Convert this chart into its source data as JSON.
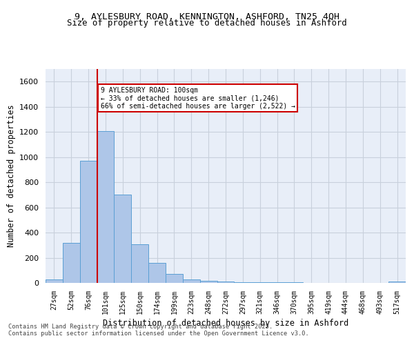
{
  "title_line1": "9, AYLESBURY ROAD, KENNINGTON, ASHFORD, TN25 4QH",
  "title_line2": "Size of property relative to detached houses in Ashford",
  "xlabel": "Distribution of detached houses by size in Ashford",
  "ylabel": "Number of detached properties",
  "categories": [
    "27sqm",
    "52sqm",
    "76sqm",
    "101sqm",
    "125sqm",
    "150sqm",
    "174sqm",
    "199sqm",
    "223sqm",
    "248sqm",
    "272sqm",
    "297sqm",
    "321sqm",
    "346sqm",
    "370sqm",
    "395sqm",
    "419sqm",
    "444sqm",
    "468sqm",
    "493sqm",
    "517sqm"
  ],
  "values": [
    25,
    320,
    970,
    1205,
    700,
    305,
    160,
    70,
    28,
    18,
    12,
    8,
    5,
    3,
    8,
    2,
    0,
    0,
    0,
    0,
    12
  ],
  "bar_color": "#aec6e8",
  "bar_edge_color": "#5a9fd4",
  "highlight_line_index": 3,
  "annotation_text": "9 AYLESBURY ROAD: 100sqm\n← 33% of detached houses are smaller (1,246)\n66% of semi-detached houses are larger (2,522) →",
  "annotation_box_color": "#cc0000",
  "ylim": [
    0,
    1700
  ],
  "yticks": [
    0,
    200,
    400,
    600,
    800,
    1000,
    1200,
    1400,
    1600
  ],
  "grid_color": "#c8d0dc",
  "bg_color": "#e8eef8",
  "footer_line1": "Contains HM Land Registry data © Crown copyright and database right 2025.",
  "footer_line2": "Contains public sector information licensed under the Open Government Licence v3.0."
}
